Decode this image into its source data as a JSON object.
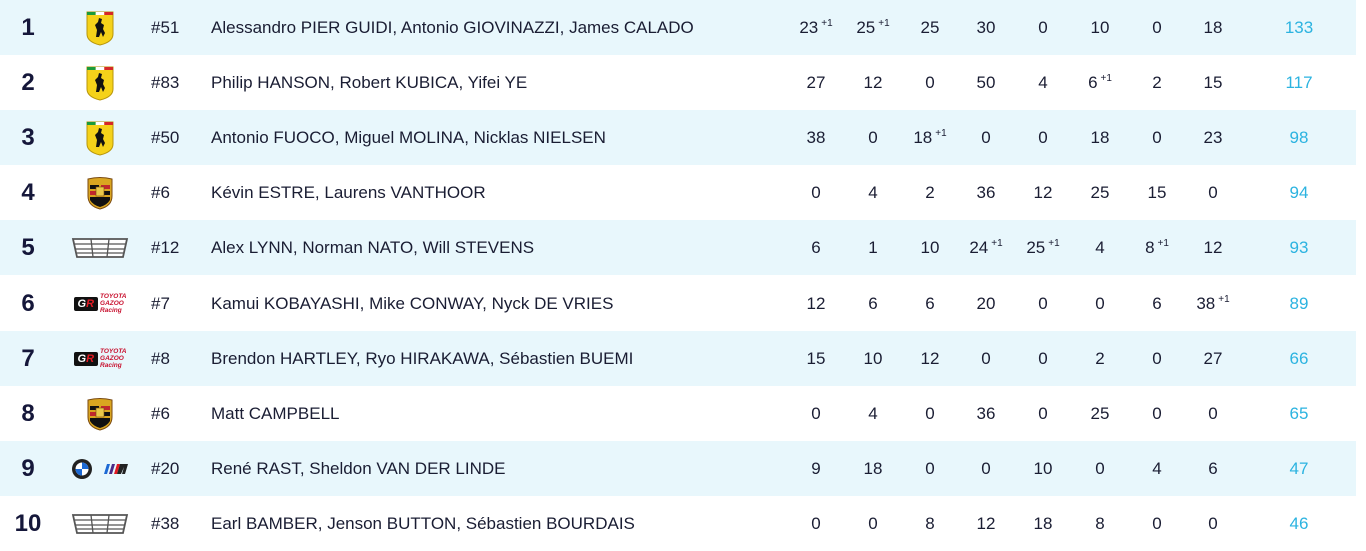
{
  "rows": [
    {
      "pos": "1",
      "logo": "ferrari-logo",
      "car": "#51",
      "drivers": "Alessandro PIER GUIDI, Antonio GIOVINAZZI, James CALADO",
      "points": [
        {
          "v": "23",
          "b": "+1"
        },
        {
          "v": "25",
          "b": "+1"
        },
        {
          "v": "25",
          "b": ""
        },
        {
          "v": "30",
          "b": ""
        },
        {
          "v": "0",
          "b": ""
        },
        {
          "v": "10",
          "b": ""
        },
        {
          "v": "0",
          "b": ""
        },
        {
          "v": "18",
          "b": ""
        }
      ],
      "total": "133"
    },
    {
      "pos": "2",
      "logo": "ferrari-logo",
      "car": "#83",
      "drivers": "Philip HANSON, Robert KUBICA, Yifei YE",
      "points": [
        {
          "v": "27",
          "b": ""
        },
        {
          "v": "12",
          "b": ""
        },
        {
          "v": "0",
          "b": ""
        },
        {
          "v": "50",
          "b": ""
        },
        {
          "v": "4",
          "b": ""
        },
        {
          "v": "6",
          "b": "+1"
        },
        {
          "v": "2",
          "b": ""
        },
        {
          "v": "15",
          "b": ""
        }
      ],
      "total": "117"
    },
    {
      "pos": "3",
      "logo": "ferrari-logo",
      "car": "#50",
      "drivers": "Antonio FUOCO, Miguel MOLINA, Nicklas NIELSEN",
      "points": [
        {
          "v": "38",
          "b": ""
        },
        {
          "v": "0",
          "b": ""
        },
        {
          "v": "18",
          "b": "+1"
        },
        {
          "v": "0",
          "b": ""
        },
        {
          "v": "0",
          "b": ""
        },
        {
          "v": "18",
          "b": ""
        },
        {
          "v": "0",
          "b": ""
        },
        {
          "v": "23",
          "b": ""
        }
      ],
      "total": "98"
    },
    {
      "pos": "4",
      "logo": "porsche-logo",
      "car": "#6",
      "drivers": "Kévin ESTRE, Laurens VANTHOOR",
      "points": [
        {
          "v": "0",
          "b": ""
        },
        {
          "v": "4",
          "b": ""
        },
        {
          "v": "2",
          "b": ""
        },
        {
          "v": "36",
          "b": ""
        },
        {
          "v": "12",
          "b": ""
        },
        {
          "v": "25",
          "b": ""
        },
        {
          "v": "15",
          "b": ""
        },
        {
          "v": "0",
          "b": ""
        }
      ],
      "total": "94"
    },
    {
      "pos": "5",
      "logo": "cadillac-logo",
      "car": "#12",
      "drivers": "Alex LYNN, Norman NATO, Will STEVENS",
      "points": [
        {
          "v": "6",
          "b": ""
        },
        {
          "v": "1",
          "b": ""
        },
        {
          "v": "10",
          "b": ""
        },
        {
          "v": "24",
          "b": "+1"
        },
        {
          "v": "25",
          "b": "+1"
        },
        {
          "v": "4",
          "b": ""
        },
        {
          "v": "8",
          "b": "+1"
        },
        {
          "v": "12",
          "b": ""
        }
      ],
      "total": "93"
    },
    {
      "pos": "6",
      "logo": "toyota-gr-logo",
      "car": "#7",
      "drivers": "Kamui KOBAYASHI, Mike CONWAY, Nyck DE VRIES",
      "points": [
        {
          "v": "12",
          "b": ""
        },
        {
          "v": "6",
          "b": ""
        },
        {
          "v": "6",
          "b": ""
        },
        {
          "v": "20",
          "b": ""
        },
        {
          "v": "0",
          "b": ""
        },
        {
          "v": "0",
          "b": ""
        },
        {
          "v": "6",
          "b": ""
        },
        {
          "v": "38",
          "b": "+1"
        }
      ],
      "total": "89"
    },
    {
      "pos": "7",
      "logo": "toyota-gr-logo",
      "car": "#8",
      "drivers": "Brendon HARTLEY, Ryo HIRAKAWA, Sébastien BUEMI",
      "points": [
        {
          "v": "15",
          "b": ""
        },
        {
          "v": "10",
          "b": ""
        },
        {
          "v": "12",
          "b": ""
        },
        {
          "v": "0",
          "b": ""
        },
        {
          "v": "0",
          "b": ""
        },
        {
          "v": "2",
          "b": ""
        },
        {
          "v": "0",
          "b": ""
        },
        {
          "v": "27",
          "b": ""
        }
      ],
      "total": "66"
    },
    {
      "pos": "8",
      "logo": "porsche-logo",
      "car": "#6",
      "drivers": "Matt CAMPBELL",
      "points": [
        {
          "v": "0",
          "b": ""
        },
        {
          "v": "4",
          "b": ""
        },
        {
          "v": "0",
          "b": ""
        },
        {
          "v": "36",
          "b": ""
        },
        {
          "v": "0",
          "b": ""
        },
        {
          "v": "25",
          "b": ""
        },
        {
          "v": "0",
          "b": ""
        },
        {
          "v": "0",
          "b": ""
        }
      ],
      "total": "65"
    },
    {
      "pos": "9",
      "logo": "bmw-m-logo",
      "car": "#20",
      "drivers": "René RAST, Sheldon VAN DER LINDE",
      "points": [
        {
          "v": "9",
          "b": ""
        },
        {
          "v": "18",
          "b": ""
        },
        {
          "v": "0",
          "b": ""
        },
        {
          "v": "0",
          "b": ""
        },
        {
          "v": "10",
          "b": ""
        },
        {
          "v": "0",
          "b": ""
        },
        {
          "v": "4",
          "b": ""
        },
        {
          "v": "6",
          "b": ""
        }
      ],
      "total": "47"
    },
    {
      "pos": "10",
      "logo": "cadillac-logo",
      "car": "#38",
      "drivers": "Earl BAMBER, Jenson BUTTON, Sébastien BOURDAIS",
      "points": [
        {
          "v": "0",
          "b": ""
        },
        {
          "v": "0",
          "b": ""
        },
        {
          "v": "8",
          "b": ""
        },
        {
          "v": "12",
          "b": ""
        },
        {
          "v": "18",
          "b": ""
        },
        {
          "v": "8",
          "b": ""
        },
        {
          "v": "0",
          "b": ""
        },
        {
          "v": "0",
          "b": ""
        }
      ],
      "total": "46"
    }
  ],
  "logos": {
    "toyota-gr-logo": {
      "line1": "TOYOTA",
      "line2": "GAZOO",
      "line3": "Racing"
    }
  },
  "colors": {
    "alt_row": "#e8f7fc",
    "text": "#1a1d33",
    "total": "#2bb3e0"
  }
}
